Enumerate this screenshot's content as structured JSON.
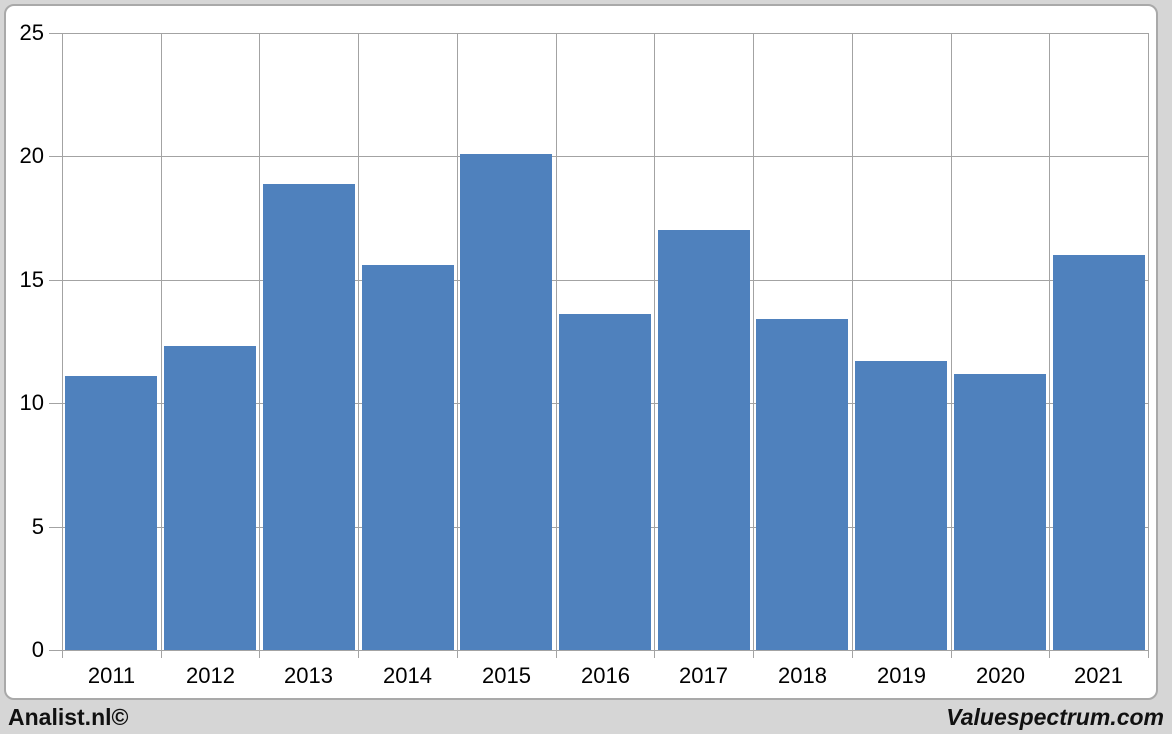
{
  "chart_data": {
    "type": "bar",
    "categories": [
      "2011",
      "2012",
      "2013",
      "2014",
      "2015",
      "2016",
      "2017",
      "2018",
      "2019",
      "2020",
      "2021"
    ],
    "values": [
      11.1,
      12.3,
      18.9,
      15.6,
      20.1,
      13.6,
      17.0,
      13.4,
      11.7,
      11.2,
      16.0
    ],
    "title": "",
    "xlabel": "",
    "ylabel": "",
    "ylim": [
      0,
      25
    ],
    "yticks": [
      0,
      5,
      10,
      15,
      20,
      25
    ],
    "grid": true,
    "legend": false,
    "bar_color": "#4f81bd",
    "gridline_color": "#a3a3a3",
    "plot_background": "#ffffff"
  },
  "footer": {
    "left_text": "Analist.nl©",
    "right_text": "Valuespectrum.com"
  },
  "colors": {
    "canvas_background": "#d6d6d6",
    "frame_border": "#a9a9a9",
    "text": "#000000"
  }
}
